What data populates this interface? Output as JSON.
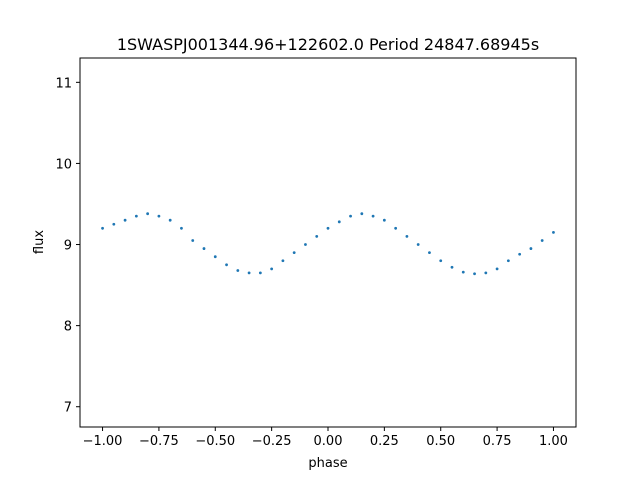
{
  "chart_data": {
    "type": "scatter",
    "title": "1SWASPJ001344.96+122602.0 Period 24847.68945s",
    "xlabel": "phase",
    "ylabel": "flux",
    "xlim": [
      -1.1,
      1.1
    ],
    "ylim": [
      6.75,
      11.3
    ],
    "x_ticks": [
      -1.0,
      -0.75,
      -0.5,
      -0.25,
      0.0,
      0.25,
      0.5,
      0.75,
      1.0
    ],
    "x_tick_labels": [
      "−1.00",
      "−0.75",
      "−0.50",
      "−0.25",
      "0.00",
      "0.25",
      "0.50",
      "0.75",
      "1.00"
    ],
    "y_ticks": [
      7,
      8,
      9,
      10,
      11
    ],
    "y_tick_labels": [
      "7",
      "8",
      "9",
      "10",
      "11"
    ],
    "grid": false,
    "legend": "none",
    "marker_color": "#1f77b4",
    "series": [
      {
        "x": [
          -1.0,
          -0.95,
          -0.9,
          -0.85,
          -0.8,
          -0.75,
          -0.7,
          -0.65,
          -0.6,
          -0.55,
          -0.5,
          -0.45,
          -0.4,
          -0.35,
          -0.3,
          -0.25,
          -0.2,
          -0.15,
          -0.1,
          -0.05,
          0.0,
          0.05,
          0.1,
          0.15,
          0.2,
          0.25,
          0.3,
          0.35,
          0.4,
          0.45,
          0.5,
          0.55,
          0.6,
          0.65,
          0.7,
          0.75,
          0.8,
          0.85,
          0.9,
          0.95,
          1.0
        ],
        "y": [
          9.2,
          9.25,
          9.3,
          9.35,
          9.38,
          9.35,
          9.3,
          9.2,
          9.05,
          8.95,
          8.85,
          8.75,
          8.68,
          8.65,
          8.65,
          8.7,
          8.8,
          8.9,
          9.0,
          9.1,
          9.2,
          9.28,
          9.35,
          9.38,
          9.35,
          9.3,
          9.2,
          9.1,
          9.0,
          8.9,
          8.8,
          8.72,
          8.66,
          8.64,
          8.65,
          8.7,
          8.8,
          8.88,
          8.95,
          9.05,
          9.15
        ]
      }
    ]
  }
}
